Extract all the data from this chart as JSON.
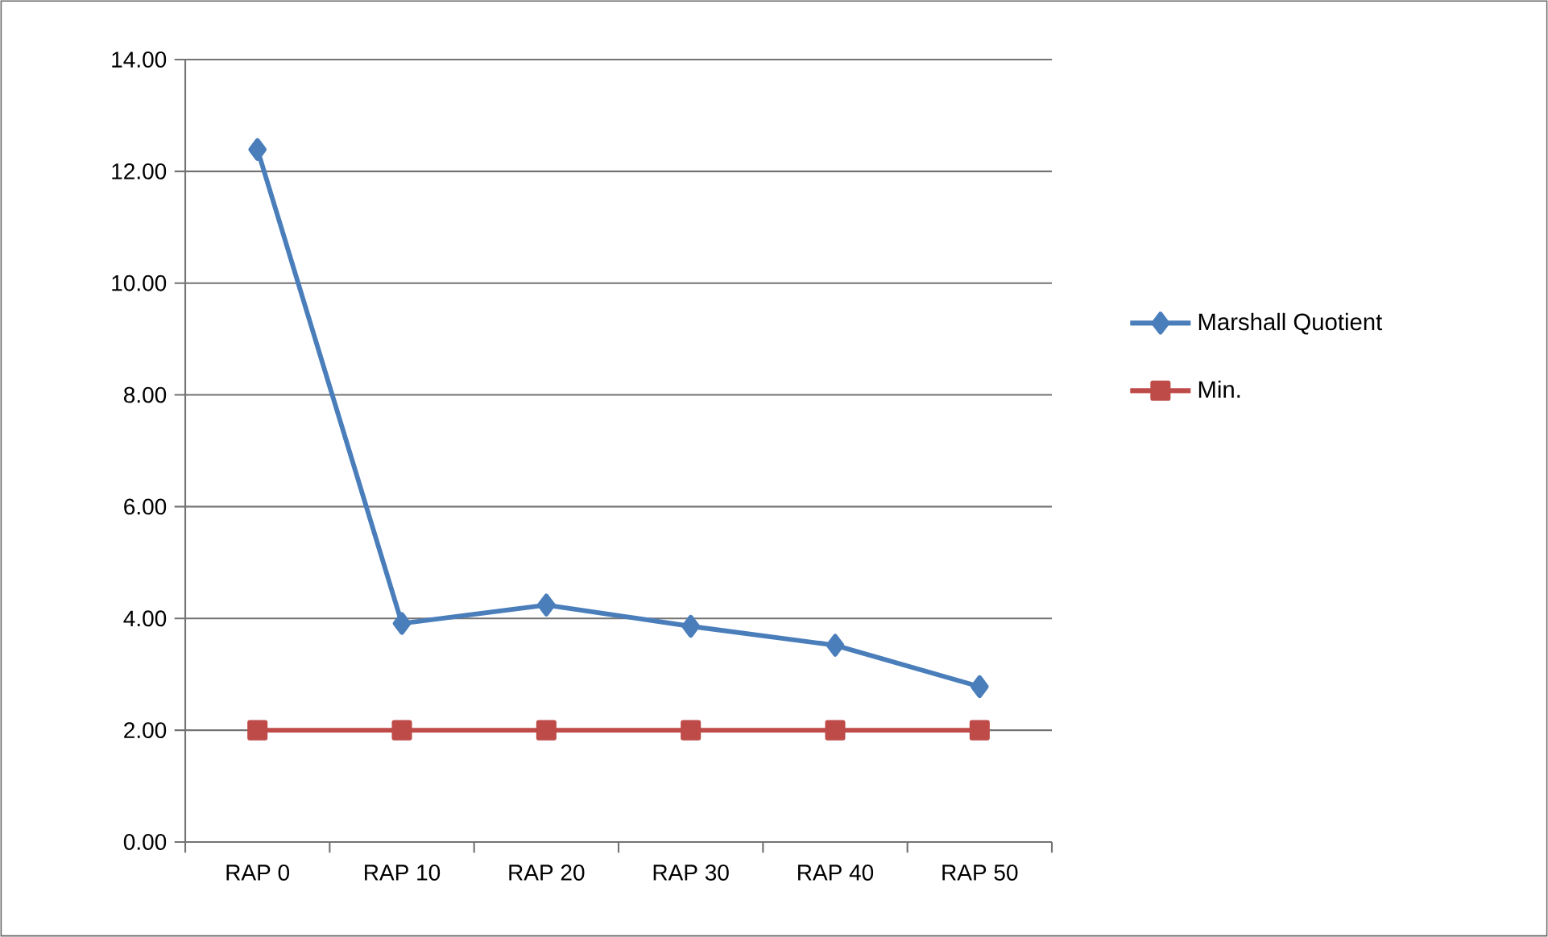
{
  "chart_data": {
    "type": "line",
    "categories": [
      "RAP 0",
      "RAP 10",
      "RAP 20",
      "RAP 30",
      "RAP 40",
      "RAP 50"
    ],
    "series": [
      {
        "name": "Marshall Quotient",
        "color": "#4a7ebb",
        "marker": "diamond",
        "values": [
          12.39,
          3.91,
          4.24,
          3.86,
          3.52,
          2.78
        ]
      },
      {
        "name": "Min.",
        "color": "#be4b48",
        "marker": "square",
        "values": [
          2.0,
          2.0,
          2.0,
          2.0,
          2.0,
          2.0
        ]
      }
    ],
    "ylim": [
      0,
      14
    ],
    "yticks": [
      {
        "value": 0,
        "label": "0.00"
      },
      {
        "value": 2,
        "label": "2.00"
      },
      {
        "value": 4,
        "label": "4.00"
      },
      {
        "value": 6,
        "label": "6.00"
      },
      {
        "value": 8,
        "label": "8.00"
      },
      {
        "value": 10,
        "label": "10.00"
      },
      {
        "value": 12,
        "label": "12.00"
      },
      {
        "value": 14,
        "label": "14.00"
      }
    ],
    "grid": "y",
    "legend": "right",
    "line_style": "solid"
  }
}
